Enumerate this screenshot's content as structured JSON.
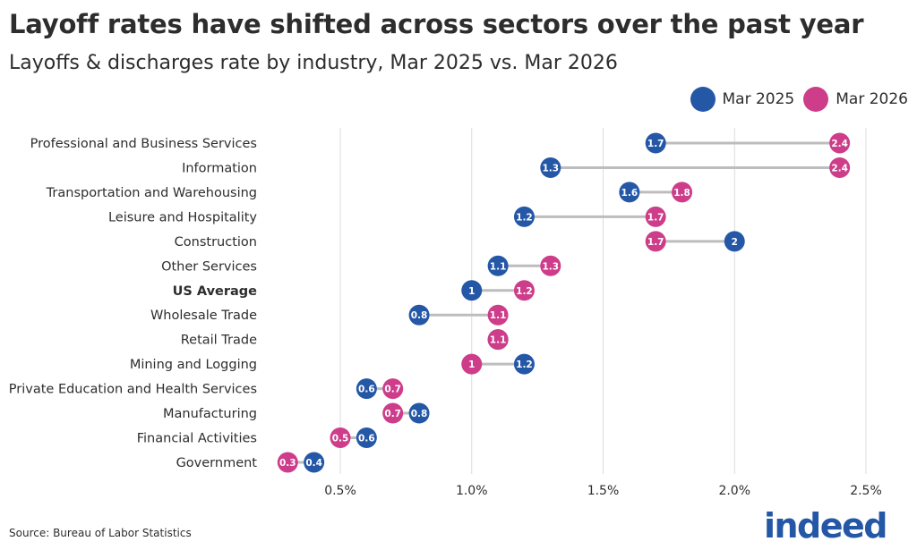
{
  "title": "Layoff rates have shifted across sectors over the past year",
  "subtitle": "Layoffs & discharges rate by industry, Mar 2025 vs. Mar 2026",
  "source": "Source: Bureau of Labor Statistics",
  "logo_text": "indeed",
  "colors": {
    "mar2025": "#2557a7",
    "mar2026": "#cd3d8a",
    "connector": "#bdbdbd",
    "grid": "#dcdcdc"
  },
  "chart_data": {
    "type": "dumbbell",
    "categories": [
      "Professional and Business Services",
      "Information",
      "Transportation and Warehousing",
      "Leisure and Hospitality",
      "Construction",
      "Other Services",
      "US Average",
      "Wholesale Trade",
      "Retail Trade",
      "Mining and Logging",
      "Private Education and Health Services",
      "Manufacturing",
      "Financial Activities",
      "Government"
    ],
    "highlight_category": "US Average",
    "series": [
      {
        "name": "Mar 2025",
        "values": [
          1.7,
          1.3,
          1.6,
          1.2,
          2.0,
          1.1,
          1.0,
          0.8,
          1.1,
          1.2,
          0.6,
          0.8,
          0.6,
          0.4
        ]
      },
      {
        "name": "Mar 2026",
        "values": [
          2.4,
          2.4,
          1.8,
          1.7,
          1.7,
          1.3,
          1.2,
          1.1,
          1.1,
          1.0,
          0.7,
          0.7,
          0.5,
          0.3
        ]
      }
    ],
    "xticks": [
      0.5,
      1.0,
      1.5,
      2.0,
      2.5
    ],
    "xtick_labels": [
      "0.5%",
      "1.0%",
      "1.5%",
      "2.0%",
      "2.5%"
    ],
    "xlim": [
      0.25,
      2.57
    ],
    "grid": "vertical",
    "legend_position": "top-right"
  }
}
